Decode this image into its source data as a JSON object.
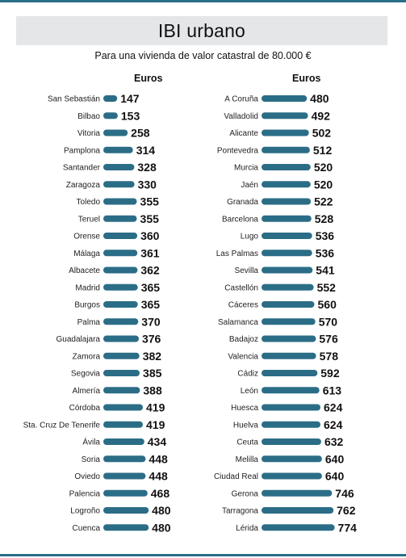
{
  "header": {
    "title": "IBI urbano",
    "subtitle": "Para una vivienda de valor catastral de 80.000 €"
  },
  "colors": {
    "bar": "#2b6d86",
    "rule": "#2a6f8a",
    "title_bg": "#e4e6e8"
  },
  "chart_data": [
    {
      "type": "bar",
      "orientation": "horizontal",
      "column_header": "Euros",
      "categories": [
        "San Sebastián",
        "Bilbao",
        "Vitoria",
        "Pamplona",
        "Santander",
        "Zaragoza",
        "Toledo",
        "Teruel",
        "Orense",
        "Málaga",
        "Albacete",
        "Madrid",
        "Burgos",
        "Palma",
        "Guadalajara",
        "Zamora",
        "Segovia",
        "Almería",
        "Córdoba",
        "Sta. Cruz De Tenerife",
        "Ávila",
        "Soria",
        "Oviedo",
        "Palencia",
        "Logroño",
        "Cuenca"
      ],
      "values": [
        147,
        153,
        258,
        314,
        328,
        330,
        355,
        355,
        360,
        361,
        362,
        365,
        365,
        370,
        376,
        382,
        385,
        388,
        419,
        419,
        434,
        448,
        448,
        468,
        480,
        480
      ]
    },
    {
      "type": "bar",
      "orientation": "horizontal",
      "column_header": "Euros",
      "categories": [
        "A Coruña",
        "Valladolid",
        "Alicante",
        "Pontevedra",
        "Murcia",
        "Jaén",
        "Granada",
        "Barcelona",
        "Lugo",
        "Las Palmas",
        "Sevilla",
        "Castellón",
        "Cáceres",
        "Salamanca",
        "Badajoz",
        "Valencia",
        "Cádiz",
        "León",
        "Huesca",
        "Huelva",
        "Ceuta",
        "Melilla",
        "Ciudad Real",
        "Gerona",
        "Tarragona",
        "Lérida"
      ],
      "values": [
        480,
        492,
        502,
        512,
        520,
        520,
        522,
        528,
        536,
        536,
        541,
        552,
        560,
        570,
        576,
        578,
        592,
        613,
        624,
        624,
        632,
        640,
        640,
        746,
        762,
        774
      ]
    }
  ]
}
